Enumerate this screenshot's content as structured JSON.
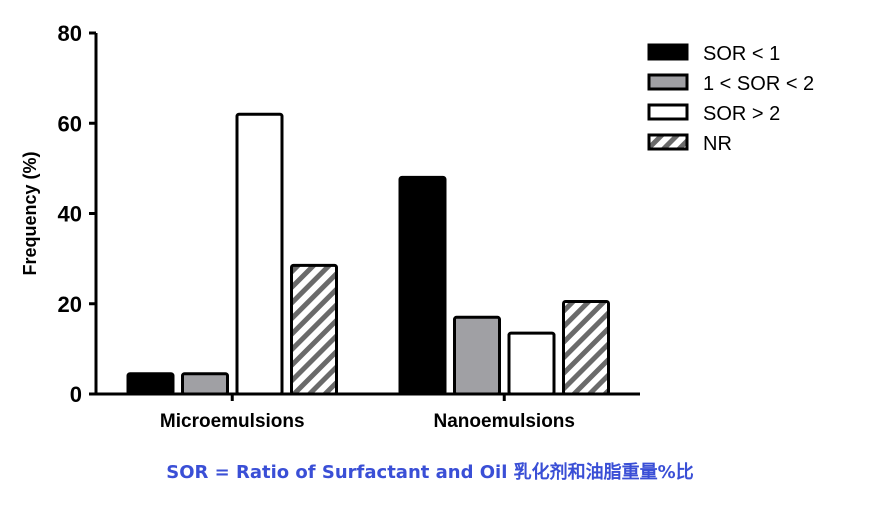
{
  "chart_data": {
    "type": "bar",
    "title": "",
    "xlabel": "",
    "ylabel": "Frequency (%)",
    "ylim": [
      0,
      80
    ],
    "yticks": [
      0,
      20,
      40,
      60,
      80
    ],
    "categories": [
      "Microemulsions",
      "Nanoemulsions"
    ],
    "series": [
      {
        "name": "SOR < 1",
        "values": [
          4.5,
          48
        ],
        "fill": "#000000",
        "pattern": "solid"
      },
      {
        "name": "1 < SOR < 2",
        "values": [
          4.5,
          17
        ],
        "fill": "#a0a0a4",
        "pattern": "solid"
      },
      {
        "name": "SOR > 2",
        "values": [
          62,
          13.5
        ],
        "fill": "#ffffff",
        "pattern": "solid"
      },
      {
        "name": "NR",
        "values": [
          28.5,
          20.5
        ],
        "fill": "#ffffff",
        "pattern": "diagonal-hatch"
      }
    ],
    "legend_position": "top-right",
    "grid": false
  },
  "footnote": {
    "text": "SOR = Ratio of Surfactant and Oil 乳化剂和油脂重量%比",
    "color": "#3a4fd6"
  }
}
